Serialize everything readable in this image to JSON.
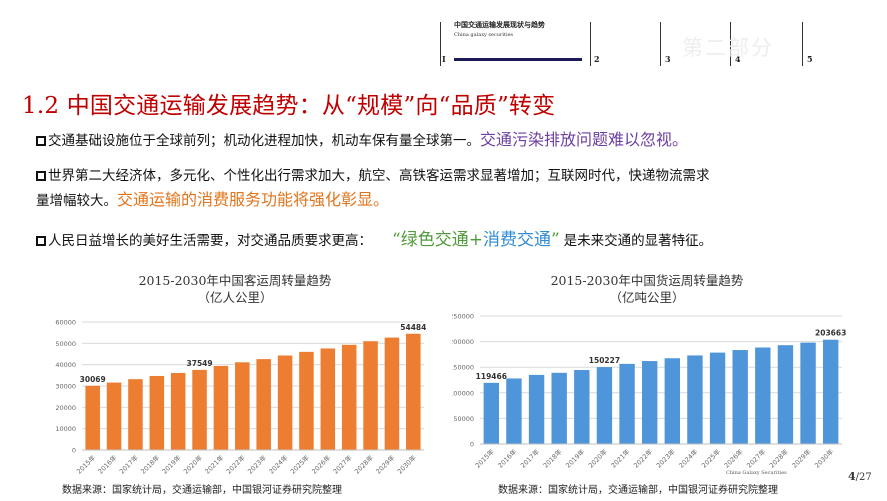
{
  "nav": {
    "title": "中国交通运输发展现状与趋势",
    "subtitle": "China galaxy securities",
    "sections": [
      "I",
      "2",
      "3",
      "4",
      "5"
    ],
    "ghost": "第二部分"
  },
  "title": "1.2 中国交通运输发展趋势：从“规模”向“品质”转变",
  "bullets": {
    "b1_text": "交通基础设施位于全球前列；机动化进程加快，机动车保有量全球第一。",
    "b1_highlight": "交通污染排放问题难以忽视。",
    "b2_line1": "世界第二大经济体，多元化、个性化出行需求加大，航空、高铁客运需求显著增加；互联网时代，快递物流需求",
    "b2_line2": "量增幅较大。",
    "b2_highlight": "交通运输的消费服务功能将强化彰显。",
    "b3_text": "人民日益增长的美好生活需要，对交通品质要求更高：",
    "b3_q_open": "“",
    "b3_green": "绿色交通",
    "b3_plus": "+",
    "b3_blue": "消费交通",
    "b3_q_close": "”",
    "b3_tail": "是未来交通的显著特征。"
  },
  "colors": {
    "title_red": "#c00000",
    "bar_orange": "#ed7d31",
    "bar_blue": "#4e95d9",
    "highlight_purple": "#6c3fa0",
    "highlight_orange": "#e2741a",
    "highlight_green": "#4f9a3a",
    "highlight_blue": "#2f8bd4"
  },
  "chart_data": [
    {
      "type": "bar",
      "title": "2015-2030年中国客运周转量趋势",
      "subtitle": "（亿人公里）",
      "categories": [
        "2015年",
        "2016年",
        "2017年",
        "2018年",
        "2019年",
        "2020年",
        "2021年",
        "2022年",
        "2023年",
        "2024年",
        "2025年",
        "2026年",
        "2027年",
        "2028年",
        "2029年",
        "2030年"
      ],
      "values": [
        30069,
        31600,
        33200,
        34700,
        36100,
        37549,
        39400,
        41100,
        42600,
        44300,
        46000,
        47600,
        49300,
        51000,
        52700,
        54484
      ],
      "data_labels": {
        "0": "30069",
        "5": "37549",
        "15": "54484"
      },
      "yticks": [
        0,
        10000,
        20000,
        30000,
        40000,
        50000,
        60000
      ],
      "ylim": [
        0,
        60000
      ],
      "grid": true,
      "color": "#ed7d31",
      "source": "数据来源：国家统计局，交通运输部，中国银河证券研究院整理"
    },
    {
      "type": "bar",
      "title": "2015-2030年中国货运周转量趋势",
      "subtitle": "（亿吨公里）",
      "categories": [
        "2015年",
        "2016年",
        "2017年",
        "2018年",
        "2019年",
        "2020年",
        "2021年",
        "2022年",
        "2023年",
        "2024年",
        "2025年",
        "2026年",
        "2027年",
        "2028年",
        "2029年",
        "2030年"
      ],
      "values": [
        119466,
        128000,
        135000,
        139000,
        144500,
        150227,
        156500,
        162000,
        167500,
        173000,
        178500,
        183500,
        188500,
        193000,
        198000,
        203663
      ],
      "data_labels": {
        "0": "119466",
        "5": "150227",
        "15": "203663"
      },
      "yticks": [
        0,
        50000,
        100000,
        150000,
        200000,
        250000
      ],
      "ylim": [
        0,
        250000
      ],
      "grid": true,
      "color": "#4e95d9",
      "source": "数据来源：国家统计局，交通运输部，中国银河证券研究院整理"
    }
  ],
  "footer": {
    "watermark": "China Galaxy Securities",
    "page_current": "4",
    "page_total": "/27"
  }
}
